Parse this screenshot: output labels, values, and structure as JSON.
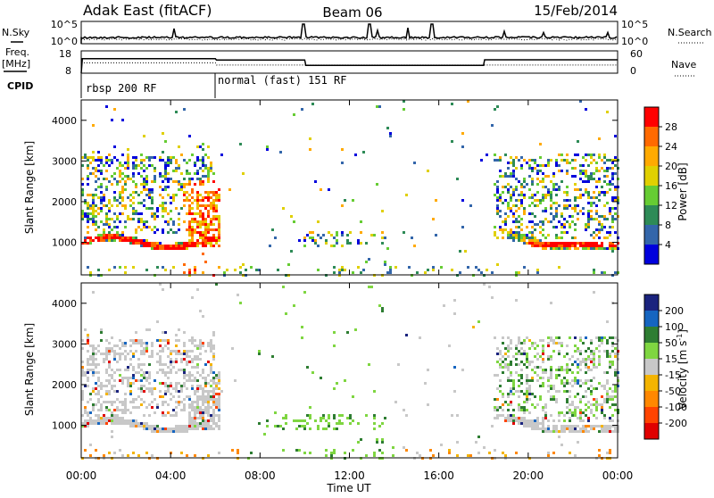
{
  "header": {
    "station": "Adak East (fitACF)",
    "beam": "Beam 06",
    "date": "15/Feb/2014"
  },
  "top_panels": {
    "nsky_label": "N.Sky",
    "nsearch_label": "N.Search",
    "freq_label": "Freq.",
    "freq_unit": "[MHz]",
    "nave_label": "Nave",
    "cpid_label": "CPID",
    "nsky_ticks": [
      "10^5",
      "10^0"
    ],
    "nsearch_ticks": [
      "10^5",
      "10^0"
    ],
    "freq_ticks": [
      "18",
      "8"
    ],
    "nave_ticks": [
      "60",
      "0"
    ],
    "cpid_segments": [
      {
        "label": "rbsp 200 RF",
        "start_hour": 0
      },
      {
        "label": "normal (fast) 151 RF",
        "start_hour": 6
      }
    ]
  },
  "power_colorbar": {
    "title": "Power [dB]",
    "ticks": [
      "28",
      "24",
      "20",
      "16",
      "12",
      "8",
      "4"
    ],
    "colors": [
      "#ff0000",
      "#ff6a00",
      "#ffaa00",
      "#e0d000",
      "#66cc33",
      "#2e8b57",
      "#3366aa",
      "#0000dd"
    ]
  },
  "velocity_colorbar": {
    "title": "Velocity [m s",
    "title_exp": "-1",
    "title_close": "]",
    "ticks": [
      "200",
      "100",
      "50",
      "15",
      "-15",
      "-50",
      "-100",
      "-200"
    ],
    "colors": [
      "#1a237e",
      "#1565c0",
      "#2e7d32",
      "#7fd641",
      "#c8c8c8",
      "#f4b400",
      "#ff8800",
      "#ff4400",
      "#e00000"
    ]
  },
  "chart_data": [
    {
      "type": "heatmap",
      "name": "power",
      "ylabel": "Slant Range [km]",
      "y_ticks": [
        1000,
        2000,
        3000,
        4000
      ],
      "ylim": [
        200,
        4500
      ],
      "xlim": [
        0,
        24
      ],
      "x_ticks": [
        "00:00",
        "04:00",
        "08:00",
        "12:00",
        "16:00",
        "20:00",
        "00:00"
      ],
      "colorbar": "power"
    },
    {
      "type": "heatmap",
      "name": "velocity",
      "ylabel": "Slant Range [km]",
      "y_ticks": [
        1000,
        2000,
        3000,
        4000
      ],
      "ylim": [
        200,
        4500
      ],
      "xlim": [
        0,
        24
      ],
      "x_ticks": [
        "00:00",
        "04:00",
        "08:00",
        "12:00",
        "16:00",
        "20:00",
        "00:00"
      ],
      "xlabel": "Time UT",
      "colorbar": "velocity"
    },
    {
      "type": "line",
      "name": "frequency",
      "unit": "MHz",
      "ylim": [
        8,
        18
      ],
      "x": [
        0,
        0.05,
        6,
        6.05,
        10,
        10.05,
        18,
        18.05,
        24
      ],
      "y": [
        8,
        14.5,
        14.5,
        13.9,
        13.9,
        11.5,
        11.5,
        14,
        14
      ]
    },
    {
      "type": "line",
      "name": "nave",
      "ylim": [
        0,
        60
      ],
      "x": [
        0,
        6,
        6.05,
        24
      ],
      "y": [
        28,
        28,
        22,
        22
      ]
    }
  ]
}
